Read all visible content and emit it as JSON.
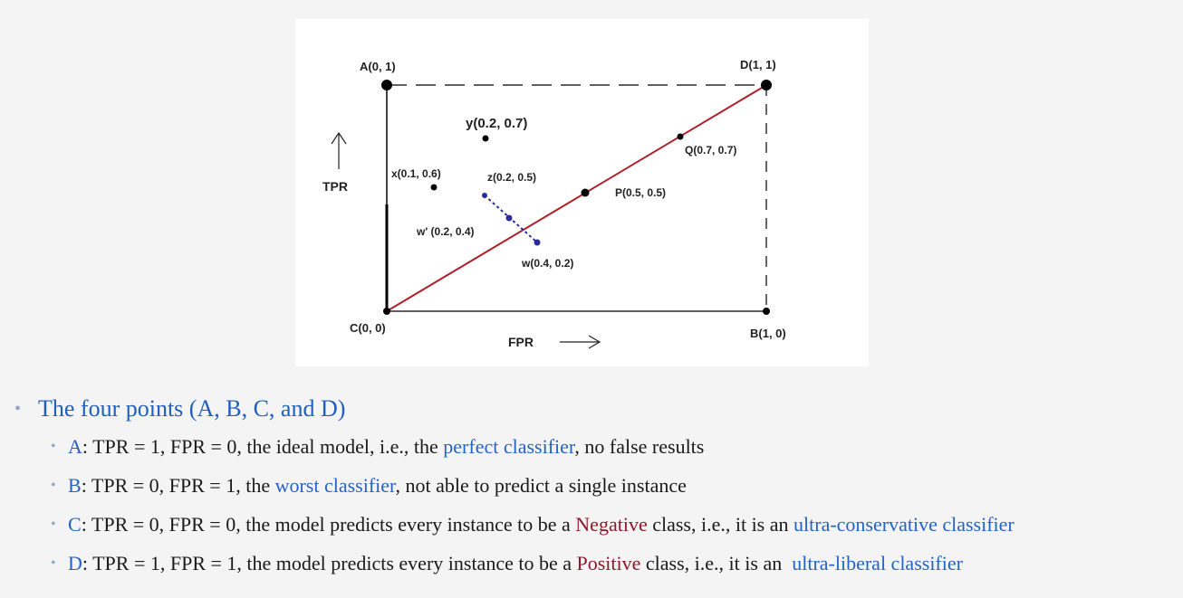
{
  "diagram": {
    "points": {
      "A": "A(0, 1)",
      "D": "D(1, 1)",
      "C": "C(0, 0)",
      "B": "B(1, 0)",
      "y": "y(0.2, 0.7)",
      "x": "x(0.1, 0.6)",
      "z": "z(0.2, 0.5)",
      "P": "P(0.5, 0.5)",
      "Q": "Q(0.7, 0.7)",
      "wp": "w' (0.2, 0.4)",
      "w": "w(0.4, 0.2)"
    },
    "axis_y": "TPR",
    "axis_x": "FPR",
    "colors": {
      "diagonal": "#b0202a",
      "projection": "#2a2a9a"
    }
  },
  "bullets": {
    "main": "The four points (A, B, C, and D)",
    "items": [
      {
        "key": "A",
        "p1": ": TPR = 1, FPR = 0, the ideal model, i.e., the ",
        "h1": "perfect classifier",
        "p2": ", no false results"
      },
      {
        "key": "B",
        "p1": ": TPR = 0, FPR = 1, the ",
        "h1": "worst classifier",
        "p2": ", not able to predict a single instance"
      },
      {
        "key": "C",
        "p1": ": TPR = 0, FPR = 0, the model predicts every instance to be a ",
        "r1": "Negative",
        "p2": " class, i.e., it is an ",
        "h1": "ultra-conservative classifier"
      },
      {
        "key": "D",
        "p1": ": TPR = 1, FPR = 1, the model predicts every instance to be a ",
        "r1": "Positive",
        "p2": " class, i.e., it is an  ",
        "h1": "ultra-liberal classifier"
      }
    ]
  }
}
